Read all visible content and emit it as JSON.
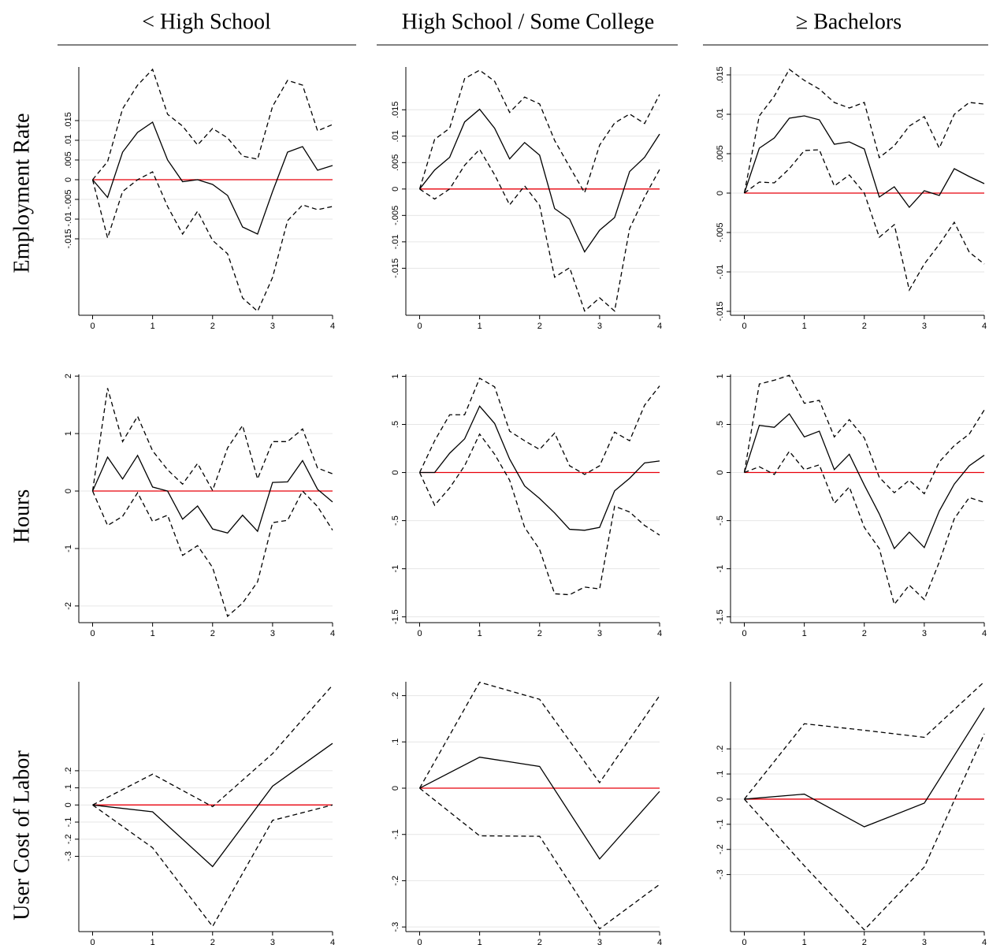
{
  "columns": [
    "< High School",
    "High School / Some College",
    "≥ Bachelors"
  ],
  "rows": [
    "Employment Rate",
    "Hours",
    "User Cost of Labor"
  ],
  "chart_data": [
    {
      "type": "line",
      "x": [
        0,
        0.25,
        0.5,
        0.75,
        1,
        1.25,
        1.5,
        1.75,
        2,
        2.25,
        2.5,
        2.75,
        3,
        3.25,
        3.5,
        3.75,
        4
      ],
      "xlim": [
        -0.23,
        4
      ],
      "xticks": [
        0,
        1,
        2,
        3,
        4
      ],
      "ylim": [
        -0.0344,
        0.0286
      ],
      "yticks": [
        {
          "value": -0.015,
          "label": "-.015"
        },
        {
          "value": -0.01,
          "label": "-.01"
        },
        {
          "value": -0.005,
          "label": "-.005"
        },
        0,
        {
          "value": 0.005,
          "label": ".005"
        },
        {
          "value": 0.01,
          "label": ".01"
        },
        {
          "value": 0.015,
          "label": ".015"
        }
      ],
      "grid": true,
      "hline": 0,
      "hline_color": "#e8000b",
      "series": [
        {
          "color": "#000000",
          "style": "solid",
          "values": [
            0,
            -0.0045,
            0.007,
            0.012,
            0.0146,
            0.005,
            -0.0005,
            0,
            -0.0012,
            -0.004,
            -0.012,
            -0.0138,
            -0.003,
            0.007,
            0.0084,
            0.0024,
            0.0036
          ]
        },
        {
          "color": "#000000",
          "style": "dashed",
          "values": [
            0,
            0.0046,
            0.018,
            0.024,
            0.028,
            0.0166,
            0.0136,
            0.0088,
            0.013,
            0.0106,
            0.006,
            0.0052,
            0.0186,
            0.0252,
            0.024,
            0.0124,
            0.014
          ]
        },
        {
          "color": "#000000",
          "style": "dashed",
          "values": [
            0,
            -0.0148,
            -0.003,
            0,
            0.002,
            -0.0068,
            -0.0138,
            -0.008,
            -0.0154,
            -0.0188,
            -0.03,
            -0.0334,
            -0.0248,
            -0.0104,
            -0.0064,
            -0.0076,
            -0.0068
          ]
        }
      ]
    },
    {
      "type": "line",
      "x": [
        0,
        0.25,
        0.5,
        0.75,
        1,
        1.25,
        1.5,
        1.75,
        2,
        2.25,
        2.5,
        2.75,
        3,
        3.25,
        3.5,
        3.75,
        4
      ],
      "xlim": [
        -0.23,
        4
      ],
      "xticks": [
        0,
        1,
        2,
        3,
        4
      ],
      "ylim": [
        -0.0239,
        0.0231
      ],
      "yticks": [
        {
          "value": -0.015,
          "label": "-.015"
        },
        {
          "value": -0.01,
          "label": "-.01"
        },
        {
          "value": -0.005,
          "label": "-.005"
        },
        0,
        {
          "value": 0.005,
          "label": ".005"
        },
        {
          "value": 0.01,
          "label": ".01"
        },
        {
          "value": 0.015,
          "label": ".015"
        }
      ],
      "grid": true,
      "hline": 0,
      "hline_color": "#e8000b",
      "series": [
        {
          "color": "#000000",
          "style": "solid",
          "values": [
            0,
            0.0036,
            0.006,
            0.0127,
            0.0151,
            0.0115,
            0.0057,
            0.0088,
            0.0064,
            -0.0037,
            -0.0057,
            -0.0119,
            -0.0078,
            -0.0054,
            0.0033,
            0.006,
            0.0104
          ]
        },
        {
          "color": "#000000",
          "style": "dashed",
          "values": [
            0,
            0.0094,
            0.0115,
            0.0209,
            0.0225,
            0.0204,
            0.0145,
            0.0174,
            0.0161,
            0.0092,
            0.0042,
            -0.0007,
            0.0083,
            0.0125,
            0.0142,
            0.0124,
            0.0179
          ]
        },
        {
          "color": "#000000",
          "style": "dashed",
          "values": [
            0,
            -0.0019,
            0,
            0.0045,
            0.0075,
            0.0027,
            -0.003,
            0.0006,
            -0.0031,
            -0.0167,
            -0.0149,
            -0.0231,
            -0.0206,
            -0.0231,
            -0.0075,
            -0.0015,
            0.0037
          ]
        }
      ]
    },
    {
      "type": "line",
      "x": [
        0,
        0.25,
        0.5,
        0.75,
        1,
        1.25,
        1.5,
        1.75,
        2,
        2.25,
        2.5,
        2.75,
        3,
        3.25,
        3.5,
        3.75,
        4
      ],
      "xlim": [
        -0.23,
        4
      ],
      "xticks": [
        0,
        1,
        2,
        3,
        4
      ],
      "ylim": [
        -0.0155,
        0.016
      ],
      "yticks": [
        {
          "value": -0.015,
          "label": "-.015"
        },
        {
          "value": -0.01,
          "label": "-.01"
        },
        {
          "value": -0.005,
          "label": "-.005"
        },
        0,
        {
          "value": 0.005,
          "label": ".005"
        },
        {
          "value": 0.01,
          "label": ".01"
        },
        {
          "value": 0.015,
          "label": ".015"
        }
      ],
      "grid": true,
      "hline": 0,
      "hline_color": "#e8000b",
      "series": [
        {
          "color": "#000000",
          "style": "solid",
          "values": [
            0,
            0.0057,
            0.007,
            0.0095,
            0.0098,
            0.0093,
            0.0062,
            0.0065,
            0.0056,
            -0.0005,
            0.0008,
            -0.0018,
            0.0003,
            -0.0003,
            0.0031,
            0.0021,
            0.0012
          ]
        },
        {
          "color": "#000000",
          "style": "dashed",
          "values": [
            0,
            0.0098,
            0.0123,
            0.0157,
            0.0143,
            0.0132,
            0.0115,
            0.0108,
            0.0115,
            0.0045,
            0.006,
            0.0085,
            0.0097,
            0.0057,
            0.01,
            0.0115,
            0.0113
          ]
        },
        {
          "color": "#000000",
          "style": "dashed",
          "values": [
            0,
            0.0014,
            0.0013,
            0.0031,
            0.0054,
            0.0055,
            0.0009,
            0.0023,
            0,
            -0.0056,
            -0.004,
            -0.0123,
            -0.009,
            -0.0065,
            -0.0037,
            -0.0075,
            -0.009
          ]
        }
      ]
    },
    {
      "type": "line",
      "x": [
        0,
        0.25,
        0.5,
        0.75,
        1,
        1.25,
        1.5,
        1.75,
        2,
        2.25,
        2.5,
        2.75,
        3,
        3.25,
        3.5,
        3.75,
        4
      ],
      "xlim": [
        -0.23,
        4
      ],
      "xticks": [
        0,
        1,
        2,
        3,
        4
      ],
      "ylim": [
        -2.29,
        2.03
      ],
      "yticks": [
        -2,
        -1,
        0,
        1,
        2
      ],
      "grid": true,
      "hline": 0,
      "hline_color": "#e8000b",
      "series": [
        {
          "color": "#000000",
          "style": "solid",
          "values": [
            0,
            0.59,
            0.21,
            0.62,
            0.07,
            0,
            -0.49,
            -0.26,
            -0.66,
            -0.73,
            -0.42,
            -0.7,
            0.15,
            0.16,
            0.53,
            0.03,
            -0.19
          ]
        },
        {
          "color": "#000000",
          "style": "dashed",
          "values": [
            0,
            1.79,
            0.86,
            1.3,
            0.7,
            0.37,
            0.12,
            0.48,
            0.01,
            0.75,
            1.14,
            0.21,
            0.86,
            0.86,
            1.08,
            0.4,
            0.3
          ]
        },
        {
          "color": "#000000",
          "style": "dashed",
          "values": [
            0,
            -0.6,
            -0.44,
            -0.03,
            -0.53,
            -0.42,
            -1.12,
            -0.95,
            -1.33,
            -2.18,
            -1.95,
            -1.58,
            -0.55,
            -0.51,
            0,
            -0.27,
            -0.68
          ]
        }
      ]
    },
    {
      "type": "line",
      "x": [
        0,
        0.25,
        0.5,
        0.75,
        1,
        1.25,
        1.5,
        1.75,
        2,
        2.25,
        2.5,
        2.75,
        3,
        3.25,
        3.5,
        3.75,
        4
      ],
      "xlim": [
        -0.23,
        4
      ],
      "xticks": [
        0,
        1,
        2,
        3,
        4
      ],
      "ylim": [
        -1.56,
        1.02
      ],
      "yticks": [
        -1.5,
        -1,
        {
          "value": -0.5,
          "label": "-.5"
        },
        0,
        {
          "value": 0.5,
          "label": ".5"
        },
        1
      ],
      "grid": true,
      "hline": 0,
      "hline_color": "#e8000b",
      "series": [
        {
          "color": "#000000",
          "style": "solid",
          "values": [
            0,
            0,
            0.2,
            0.35,
            0.69,
            0.51,
            0.14,
            -0.14,
            -0.27,
            -0.42,
            -0.59,
            -0.6,
            -0.57,
            -0.19,
            -0.06,
            0.1,
            0.12
          ]
        },
        {
          "color": "#000000",
          "style": "dashed",
          "values": [
            0,
            0.33,
            0.6,
            0.6,
            0.98,
            0.89,
            0.43,
            0.33,
            0.24,
            0.41,
            0.07,
            -0.02,
            0.07,
            0.42,
            0.33,
            0.7,
            0.9
          ]
        },
        {
          "color": "#000000",
          "style": "dashed",
          "values": [
            0,
            -0.34,
            -0.16,
            0.07,
            0.4,
            0.19,
            -0.08,
            -0.57,
            -0.8,
            -1.26,
            -1.27,
            -1.19,
            -1.21,
            -0.35,
            -0.41,
            -0.55,
            -0.65
          ]
        }
      ]
    },
    {
      "type": "line",
      "x": [
        0,
        0.25,
        0.5,
        0.75,
        1,
        1.25,
        1.5,
        1.75,
        2,
        2.25,
        2.5,
        2.75,
        3,
        3.25,
        3.5,
        3.75,
        4
      ],
      "xlim": [
        -0.23,
        4
      ],
      "xticks": [
        0,
        1,
        2,
        3,
        4
      ],
      "ylim": [
        -1.56,
        1.02
      ],
      "yticks": [
        -1.5,
        -1,
        {
          "value": -0.5,
          "label": "-.5"
        },
        0,
        {
          "value": 0.5,
          "label": ".5"
        },
        1
      ],
      "grid": true,
      "hline": 0,
      "hline_color": "#e8000b",
      "series": [
        {
          "color": "#000000",
          "style": "solid",
          "values": [
            0,
            0.49,
            0.47,
            0.61,
            0.37,
            0.43,
            0.03,
            0.19,
            -0.13,
            -0.43,
            -0.79,
            -0.62,
            -0.78,
            -0.4,
            -0.12,
            0.07,
            0.18
          ]
        },
        {
          "color": "#000000",
          "style": "dashed",
          "values": [
            0,
            0.92,
            0.96,
            1.01,
            0.72,
            0.75,
            0.37,
            0.55,
            0.36,
            -0.05,
            -0.21,
            -0.08,
            -0.22,
            0.11,
            0.28,
            0.4,
            0.65
          ]
        },
        {
          "color": "#000000",
          "style": "dashed",
          "values": [
            0,
            0.06,
            -0.02,
            0.22,
            0.03,
            0.08,
            -0.32,
            -0.15,
            -0.57,
            -0.79,
            -1.37,
            -1.17,
            -1.32,
            -0.93,
            -0.48,
            -0.26,
            -0.31
          ]
        }
      ]
    },
    {
      "type": "line",
      "x": [
        0,
        1,
        2,
        3,
        4
      ],
      "xlim": [
        -0.23,
        4
      ],
      "xticks": [
        0,
        1,
        2,
        3,
        4
      ],
      "ylim": [
        -0.74,
        0.72
      ],
      "yticks": [
        {
          "value": -0.3,
          "label": "-.3"
        },
        {
          "value": -0.2,
          "label": "-.2"
        },
        {
          "value": -0.1,
          "label": "-.1"
        },
        0,
        {
          "value": 0.1,
          "label": ".1"
        },
        {
          "value": 0.2,
          "label": ".2"
        }
      ],
      "grid": true,
      "hline": 0,
      "hline_color": "#e8000b",
      "series": [
        {
          "color": "#000000",
          "style": "solid",
          "values": [
            0,
            -0.04,
            -0.36,
            0.11,
            0.36
          ]
        },
        {
          "color": "#000000",
          "style": "dashed",
          "values": [
            0,
            0.18,
            -0.01,
            0.3,
            0.7
          ]
        },
        {
          "color": "#000000",
          "style": "dashed",
          "values": [
            0,
            -0.25,
            -0.71,
            -0.09,
            0
          ]
        }
      ]
    },
    {
      "type": "line",
      "x": [
        0,
        1,
        2,
        3,
        4
      ],
      "xlim": [
        -0.23,
        4
      ],
      "xticks": [
        0,
        1,
        2,
        3,
        4
      ],
      "ylim": [
        -0.31,
        0.23
      ],
      "yticks": [
        {
          "value": -0.3,
          "label": "-.3"
        },
        {
          "value": -0.2,
          "label": "-.2"
        },
        {
          "value": -0.1,
          "label": "-.1"
        },
        0,
        {
          "value": 0.1,
          "label": ".1"
        },
        {
          "value": 0.2,
          "label": ".2"
        }
      ],
      "grid": true,
      "hline": 0,
      "hline_color": "#e8000b",
      "series": [
        {
          "color": "#000000",
          "style": "solid",
          "values": [
            0,
            0.067,
            0.047,
            -0.153,
            -0.007
          ]
        },
        {
          "color": "#000000",
          "style": "dashed",
          "values": [
            0,
            0.229,
            0.192,
            0.012,
            0.2
          ]
        },
        {
          "color": "#000000",
          "style": "dashed",
          "values": [
            0,
            -0.103,
            -0.104,
            -0.304,
            -0.208
          ]
        }
      ]
    },
    {
      "type": "line",
      "x": [
        0,
        1,
        2,
        3,
        4
      ],
      "xlim": [
        -0.23,
        4
      ],
      "xticks": [
        0,
        1,
        2,
        3,
        4
      ],
      "ylim": [
        -0.527,
        0.467
      ],
      "yticks": [
        {
          "value": -0.3,
          "label": "-.3"
        },
        {
          "value": -0.2,
          "label": "-.2"
        },
        {
          "value": -0.1,
          "label": "-.1"
        },
        0,
        {
          "value": 0.1,
          "label": ".1"
        },
        {
          "value": 0.2,
          "label": ".2"
        }
      ],
      "grid": true,
      "hline": 0,
      "hline_color": "#e8000b",
      "series": [
        {
          "color": "#000000",
          "style": "solid",
          "values": [
            0,
            0.02,
            -0.11,
            -0.016,
            0.363
          ]
        },
        {
          "color": "#000000",
          "style": "dashed",
          "values": [
            0,
            0.3,
            0.274,
            0.246,
            0.467
          ]
        },
        {
          "color": "#000000",
          "style": "dashed",
          "values": [
            0,
            -0.265,
            -0.52,
            -0.27,
            0.26
          ]
        }
      ]
    }
  ]
}
